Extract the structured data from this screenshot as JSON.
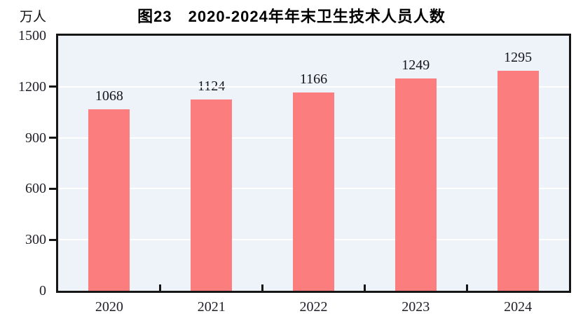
{
  "chart_data": {
    "type": "bar",
    "title": "图23　2020-2024年年末卫生技术人员人数",
    "unit_label": "万人",
    "categories": [
      "2020",
      "2021",
      "2022",
      "2023",
      "2024"
    ],
    "values": [
      1068,
      1124,
      1166,
      1249,
      1295
    ],
    "y_ticks": [
      0,
      300,
      600,
      900,
      1200,
      1500
    ],
    "ylim": [
      0,
      1500
    ],
    "grid": true,
    "legend": "none",
    "colors": {
      "bar_fill": "#fb7d7d",
      "plot_background": "#edf3f8",
      "gridline": "#ffffff",
      "axis": "#161616",
      "label_text": "#15151d",
      "page_background": "#ffffff"
    }
  }
}
